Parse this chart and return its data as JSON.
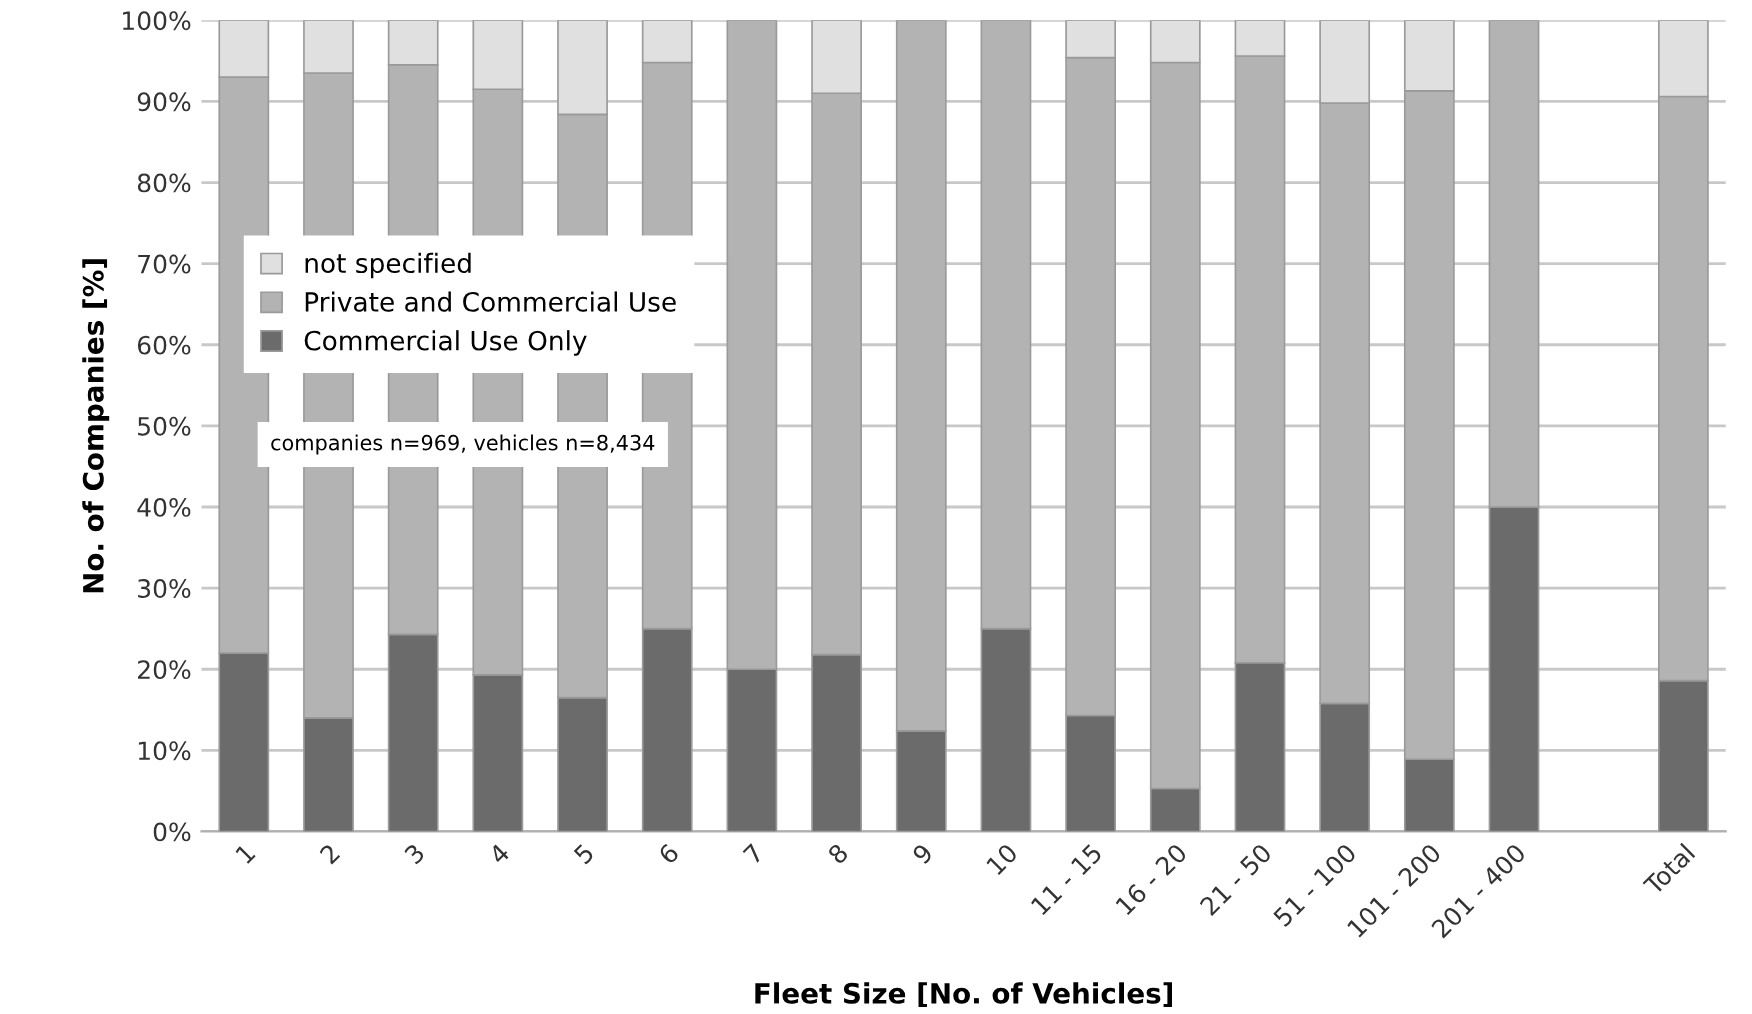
{
  "chart_data": {
    "type": "bar",
    "stacked": true,
    "xlabel": "Fleet Size [No. of Vehicles]",
    "ylabel": "No. of Companies [%]",
    "categories": [
      "1",
      "2",
      "3",
      "4",
      "5",
      "6",
      "7",
      "8",
      "9",
      "10",
      "11 - 15",
      "16 - 20",
      "21 - 50",
      "51 - 100",
      "101 - 200",
      "201 - 400",
      null,
      "Total"
    ],
    "series": [
      {
        "name": "Commercial Use Only",
        "color": "#6b6b6b",
        "values": [
          22,
          14,
          24.3,
          19.3,
          16.5,
          25,
          20,
          21.8,
          12.4,
          25,
          14.3,
          5.3,
          20.8,
          15.8,
          8.9,
          40,
          null,
          18.6
        ]
      },
      {
        "name": "Private and Commercial Use",
        "color": "#b3b3b3",
        "values": [
          71,
          79.5,
          70.2,
          72.2,
          71.9,
          69.8,
          80,
          69.2,
          87.6,
          75,
          81.1,
          89.5,
          74.8,
          74,
          82.4,
          60,
          null,
          72
        ]
      },
      {
        "name": "not specified",
        "color": "#e0e0e0",
        "values": [
          7,
          6.5,
          5.5,
          8.5,
          11.6,
          5.2,
          0,
          9,
          0,
          0,
          4.6,
          5.2,
          4.4,
          10.2,
          8.7,
          0,
          null,
          9.4
        ]
      }
    ],
    "ylim": [
      0,
      100
    ],
    "yticks": [
      {
        "value": 0,
        "label": "0%"
      },
      {
        "value": 10,
        "label": "10%"
      },
      {
        "value": 20,
        "label": "20%"
      },
      {
        "value": 30,
        "label": "30%"
      },
      {
        "value": 40,
        "label": "40%"
      },
      {
        "value": 50,
        "label": "50%"
      },
      {
        "value": 60,
        "label": "60%"
      },
      {
        "value": 70,
        "label": "70%"
      },
      {
        "value": 80,
        "label": "80%"
      },
      {
        "value": 90,
        "label": "90%"
      },
      {
        "value": 100,
        "label": "100%"
      }
    ],
    "grid": "y",
    "legend": "center left",
    "annotations": [
      "companies n=969, vehicles n=8,434"
    ]
  }
}
